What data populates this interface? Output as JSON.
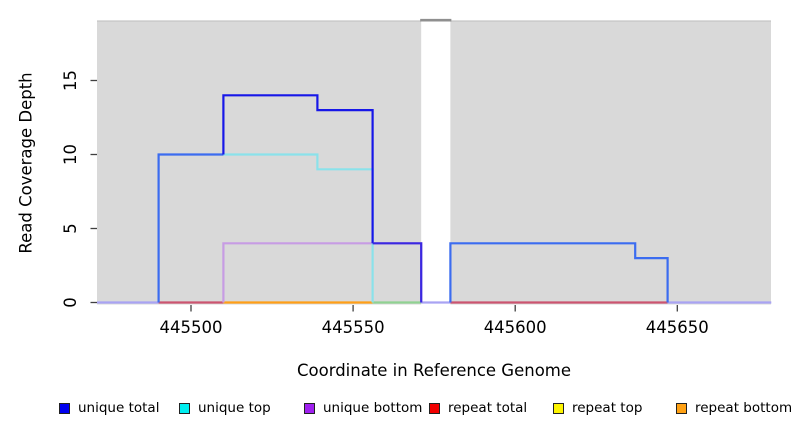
{
  "figure": {
    "x_label": "Coordinate in Reference Genome",
    "y_label": "Read Coverage Depth"
  },
  "legend": {
    "items": [
      {
        "label": "unique total",
        "color": "#0000f0"
      },
      {
        "label": "unique top",
        "color": "#00eef0"
      },
      {
        "label": "unique bottom",
        "color": "#a020f0"
      },
      {
        "label": "repeat total",
        "color": "#f20000"
      },
      {
        "label": "repeat top",
        "color": "#fdf400"
      },
      {
        "label": "repeat bottom",
        "color": "#ffa114"
      }
    ]
  },
  "chart_data": {
    "type": "line",
    "subtype": "step",
    "title": "",
    "xlabel": "Coordinate in Reference Genome",
    "ylabel": "Read Coverage Depth",
    "x_ticks": [
      445500,
      445550,
      445600,
      445650
    ],
    "y_ticks": [
      0,
      5,
      10,
      15
    ],
    "xlim": [
      445471,
      445679
    ],
    "ylim": [
      0,
      19
    ],
    "grid": false,
    "legend_position": "bottom",
    "background": "#d9d9d9",
    "gap_region": {
      "from": 445571,
      "to": 445580
    },
    "series": [
      {
        "name": "unique total",
        "steps": [
          [
            445471,
            0
          ],
          [
            445490,
            10
          ],
          [
            445510,
            14
          ],
          [
            445539,
            13
          ],
          [
            445556,
            4
          ],
          [
            445571,
            0
          ],
          [
            445580,
            4
          ],
          [
            445637,
            3
          ],
          [
            445647,
            0
          ]
        ]
      },
      {
        "name": "unique top",
        "steps": [
          [
            445471,
            0
          ],
          [
            445490,
            10
          ],
          [
            445539,
            9
          ],
          [
            445556,
            0
          ]
        ]
      },
      {
        "name": "unique bottom",
        "steps": [
          [
            445471,
            0
          ],
          [
            445510,
            4
          ],
          [
            445571,
            0
          ]
        ]
      },
      {
        "name": "repeat total",
        "steps": [
          [
            445471,
            0
          ]
        ]
      },
      {
        "name": "repeat top",
        "steps": [
          [
            445471,
            0
          ]
        ]
      },
      {
        "name": "repeat bottom",
        "steps": [
          [
            445471,
            0
          ]
        ]
      }
    ],
    "palette": {
      "royalBlue": "#3b6cf0",
      "deepBlue": "#1717e8",
      "blueViolet": "#3a28e0",
      "paleCyan": "#8ae2ea",
      "lightPurple": "#c79ce4",
      "crimson": "#cc5470",
      "orangeLine": "#ff9f17",
      "greenLine": "#90d292",
      "lavender": "#a9a3f3",
      "gapTopBar": "#8f8f8f",
      "panelEdge": "#c8c8c8",
      "tick": "#404040"
    },
    "rendered_segments": [
      {
        "name": "baseline-left-lavender",
        "color": "lavender",
        "points": [
          [
            445471,
            0
          ],
          [
            445490,
            0
          ]
        ]
      },
      {
        "name": "baseline-crimson-left",
        "color": "crimson",
        "points": [
          [
            445490,
            0
          ],
          [
            445510,
            0
          ]
        ]
      },
      {
        "name": "baseline-orange",
        "color": "orangeLine",
        "points": [
          [
            445510,
            0
          ],
          [
            445556,
            0
          ]
        ]
      },
      {
        "name": "baseline-green",
        "color": "greenLine",
        "points": [
          [
            445556,
            0
          ],
          [
            445571,
            0
          ]
        ]
      },
      {
        "name": "baseline-gap-lavender",
        "color": "lavender",
        "points": [
          [
            445571,
            0
          ],
          [
            445580,
            0
          ]
        ]
      },
      {
        "name": "baseline-crimson-right",
        "color": "crimson",
        "points": [
          [
            445580,
            0
          ],
          [
            445647,
            0
          ]
        ]
      },
      {
        "name": "baseline-right-lavender",
        "color": "lavender",
        "points": [
          [
            445647,
            0
          ],
          [
            445679,
            0
          ]
        ]
      },
      {
        "name": "unique-bottom-step",
        "color": "lightPurple",
        "points": [
          [
            445510,
            0
          ],
          [
            445510,
            4
          ],
          [
            445571,
            4
          ],
          [
            445571,
            0
          ]
        ]
      },
      {
        "name": "unique-top-step",
        "color": "paleCyan",
        "points": [
          [
            445510,
            10
          ],
          [
            445539,
            10
          ],
          [
            445539,
            9
          ],
          [
            445556,
            9
          ],
          [
            445556,
            0
          ]
        ]
      },
      {
        "name": "unique-total-rise",
        "color": "royalBlue",
        "points": [
          [
            445490,
            0
          ],
          [
            445490,
            10
          ],
          [
            445510,
            10
          ]
        ]
      },
      {
        "name": "unique-total-peak",
        "color": "deepBlue",
        "points": [
          [
            445510,
            10
          ],
          [
            445510,
            14
          ],
          [
            445539,
            14
          ],
          [
            445539,
            13
          ],
          [
            445556,
            13
          ],
          [
            445556,
            4
          ]
        ]
      },
      {
        "name": "unique-total-shoulder",
        "color": "blueViolet",
        "points": [
          [
            445556,
            4
          ],
          [
            445571,
            4
          ],
          [
            445571,
            0
          ]
        ]
      },
      {
        "name": "unique-total-right",
        "color": "royalBlue",
        "points": [
          [
            445580,
            0
          ],
          [
            445580,
            4
          ],
          [
            445637,
            4
          ],
          [
            445637,
            3
          ],
          [
            445647,
            3
          ],
          [
            445647,
            0
          ]
        ]
      }
    ]
  }
}
